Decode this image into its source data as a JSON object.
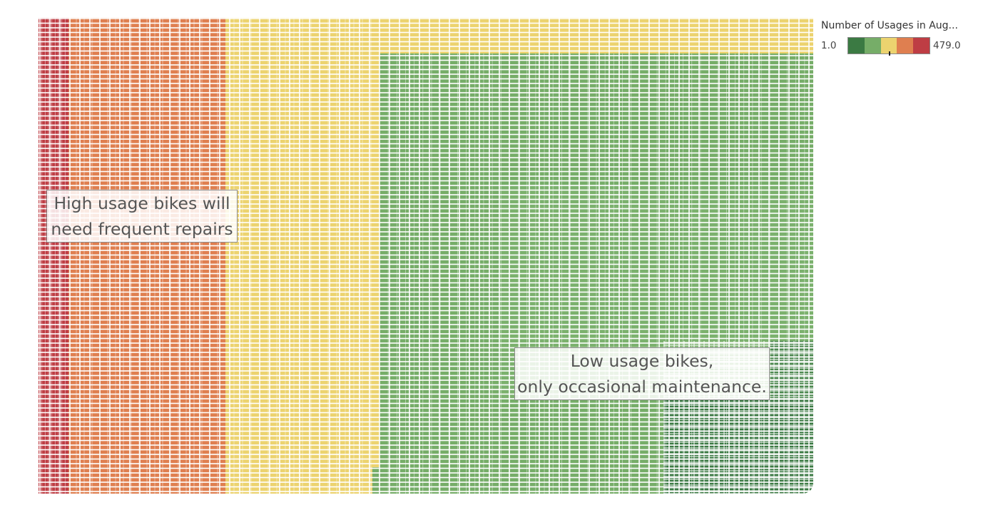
{
  "chart_data": {
    "type": "treemap",
    "legend": {
      "title": "Number of Usages in Aug...",
      "min": "1.0",
      "max": "479.0",
      "placement": "top-right",
      "colors": [
        "#3b7a43",
        "#76ad68",
        "#ecd36f",
        "#df7f50",
        "#be3d44"
      ]
    },
    "usage_groups": [
      {
        "color": "#be3d44"
      },
      {
        "color": "#df7f50"
      },
      {
        "color": "#ecd36f"
      },
      {
        "color": "#76ad68"
      },
      {
        "color": "#3b7a43"
      }
    ],
    "annotations": [
      {
        "lines": [
          "High usage bikes will",
          "need frequent repairs"
        ]
      },
      {
        "lines": [
          "Low usage bikes,",
          "only occasional maintenance."
        ]
      }
    ]
  }
}
